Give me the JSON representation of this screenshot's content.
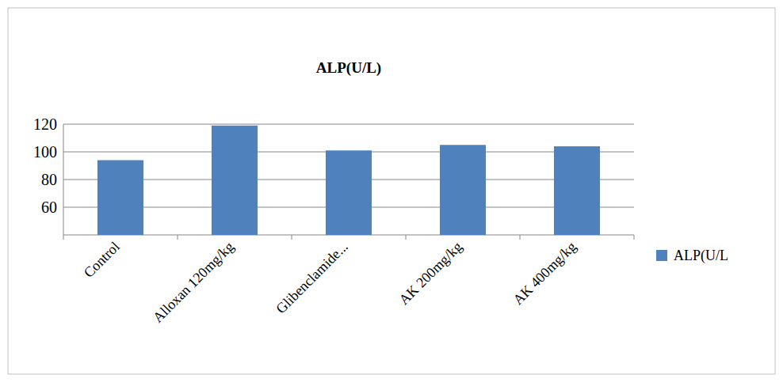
{
  "chart_data": {
    "type": "bar",
    "title": "ALP(U/L)",
    "categories": [
      "Control",
      "Alloxan 120mg/kg",
      "Glibenclamide...",
      "AK 200mg/kg",
      "AK 400mg/kg"
    ],
    "series": [
      {
        "name": "ALP(U/L",
        "color": "#4f81bd",
        "values": [
          94,
          119,
          101,
          105,
          104
        ]
      }
    ],
    "ylim": [
      40,
      120
    ],
    "yticks": [
      60,
      80,
      100,
      120
    ],
    "grid": true,
    "legend": "right"
  }
}
